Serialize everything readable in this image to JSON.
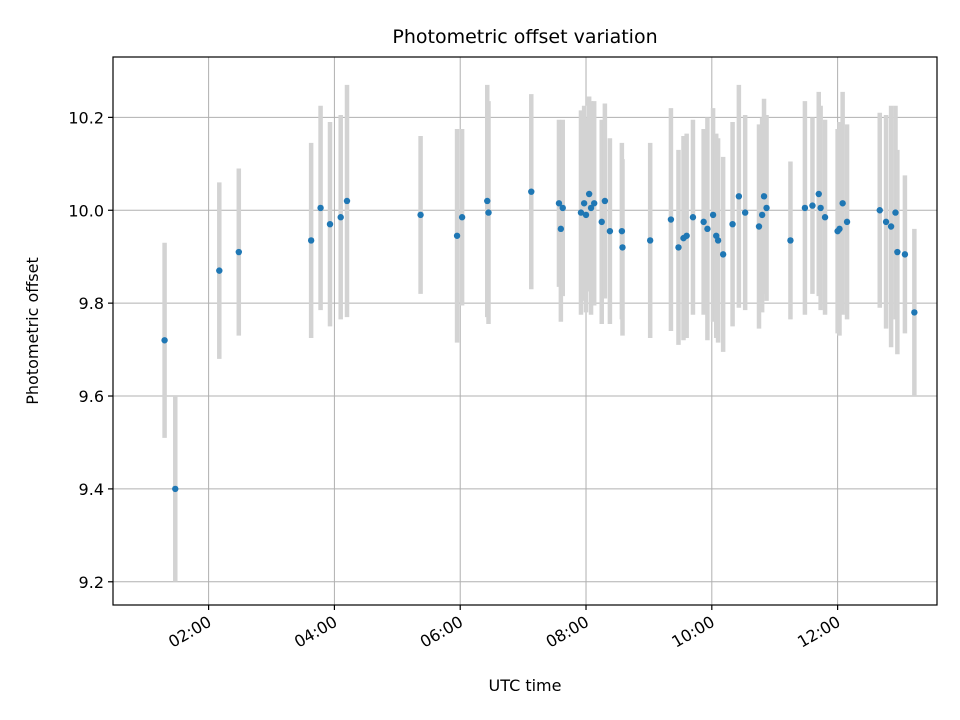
{
  "chart_data": {
    "type": "scatter",
    "title": "Photometric offset variation",
    "xlabel": "UTC time",
    "ylabel": "Photometric offset",
    "x_unit": "hours UTC",
    "xlim": [
      0.48,
      13.58
    ],
    "ylim": [
      9.15,
      10.33
    ],
    "grid": true,
    "x_ticks": [
      {
        "value": 2,
        "label": "02:00"
      },
      {
        "value": 4,
        "label": "04:00"
      },
      {
        "value": 6,
        "label": "06:00"
      },
      {
        "value": 8,
        "label": "08:00"
      },
      {
        "value": 10,
        "label": "10:00"
      },
      {
        "value": 12,
        "label": "12:00"
      }
    ],
    "y_ticks": [
      {
        "value": 9.2,
        "label": "9.2"
      },
      {
        "value": 9.4,
        "label": "9.4"
      },
      {
        "value": 9.6,
        "label": "9.6"
      },
      {
        "value": 9.8,
        "label": "9.8"
      },
      {
        "value": 10.0,
        "label": "10.0"
      },
      {
        "value": 10.2,
        "label": "10.2"
      }
    ],
    "colors": {
      "point": "#1f77b4",
      "errorbar": "#d3d3d3",
      "grid": "#b0b0b0"
    },
    "series": [
      {
        "x": [
          1.3,
          1.47,
          2.17,
          2.48,
          3.63,
          3.78,
          3.93,
          4.1,
          4.2,
          5.37,
          5.95,
          6.03,
          6.43,
          6.45,
          7.13,
          7.57,
          7.6,
          7.63,
          7.92,
          7.97,
          8.0,
          8.05,
          8.08,
          8.13,
          8.25,
          8.3,
          8.38,
          8.57,
          8.58,
          9.02,
          9.35,
          9.47,
          9.55,
          9.6,
          9.7,
          9.87,
          9.93,
          10.02,
          10.07,
          10.1,
          10.18,
          10.33,
          10.43,
          10.53,
          10.75,
          10.8,
          10.83,
          10.87,
          11.25,
          11.48,
          11.6,
          11.7,
          11.73,
          11.8,
          12.0,
          12.03,
          12.08,
          12.15,
          12.67,
          12.77,
          12.85,
          12.92,
          12.95,
          13.07,
          13.22
        ],
        "y": [
          9.72,
          9.4,
          9.87,
          9.91,
          9.935,
          10.005,
          9.97,
          9.985,
          10.02,
          9.99,
          9.945,
          9.985,
          10.02,
          9.995,
          10.04,
          10.015,
          9.96,
          10.005,
          9.995,
          10.015,
          9.99,
          10.035,
          10.005,
          10.015,
          9.975,
          10.02,
          9.955,
          9.955,
          9.92,
          9.935,
          9.98,
          9.92,
          9.94,
          9.945,
          9.985,
          9.975,
          9.96,
          9.99,
          9.945,
          9.935,
          9.905,
          9.97,
          10.03,
          9.995,
          9.965,
          9.99,
          10.03,
          10.005,
          9.935,
          10.005,
          10.01,
          10.035,
          10.005,
          9.985,
          9.955,
          9.96,
          10.015,
          9.975,
          10.0,
          9.975,
          9.965,
          9.995,
          9.91,
          9.905,
          9.78
        ],
        "err": [
          0.21,
          0.2,
          0.19,
          0.18,
          0.21,
          0.22,
          0.22,
          0.22,
          0.25,
          0.17,
          0.23,
          0.19,
          0.25,
          0.24,
          0.21,
          0.18,
          0.2,
          0.19,
          0.22,
          0.21,
          0.21,
          0.21,
          0.23,
          0.22,
          0.22,
          0.21,
          0.2,
          0.19,
          0.19,
          0.21,
          0.24,
          0.21,
          0.22,
          0.22,
          0.21,
          0.2,
          0.24,
          0.23,
          0.22,
          0.22,
          0.21,
          0.22,
          0.24,
          0.21,
          0.22,
          0.21,
          0.21,
          0.2,
          0.17,
          0.23,
          0.19,
          0.22,
          0.22,
          0.21,
          0.22,
          0.23,
          0.24,
          0.21,
          0.21,
          0.23,
          0.26,
          0.23,
          0.22,
          0.17,
          0.18
        ]
      }
    ]
  }
}
